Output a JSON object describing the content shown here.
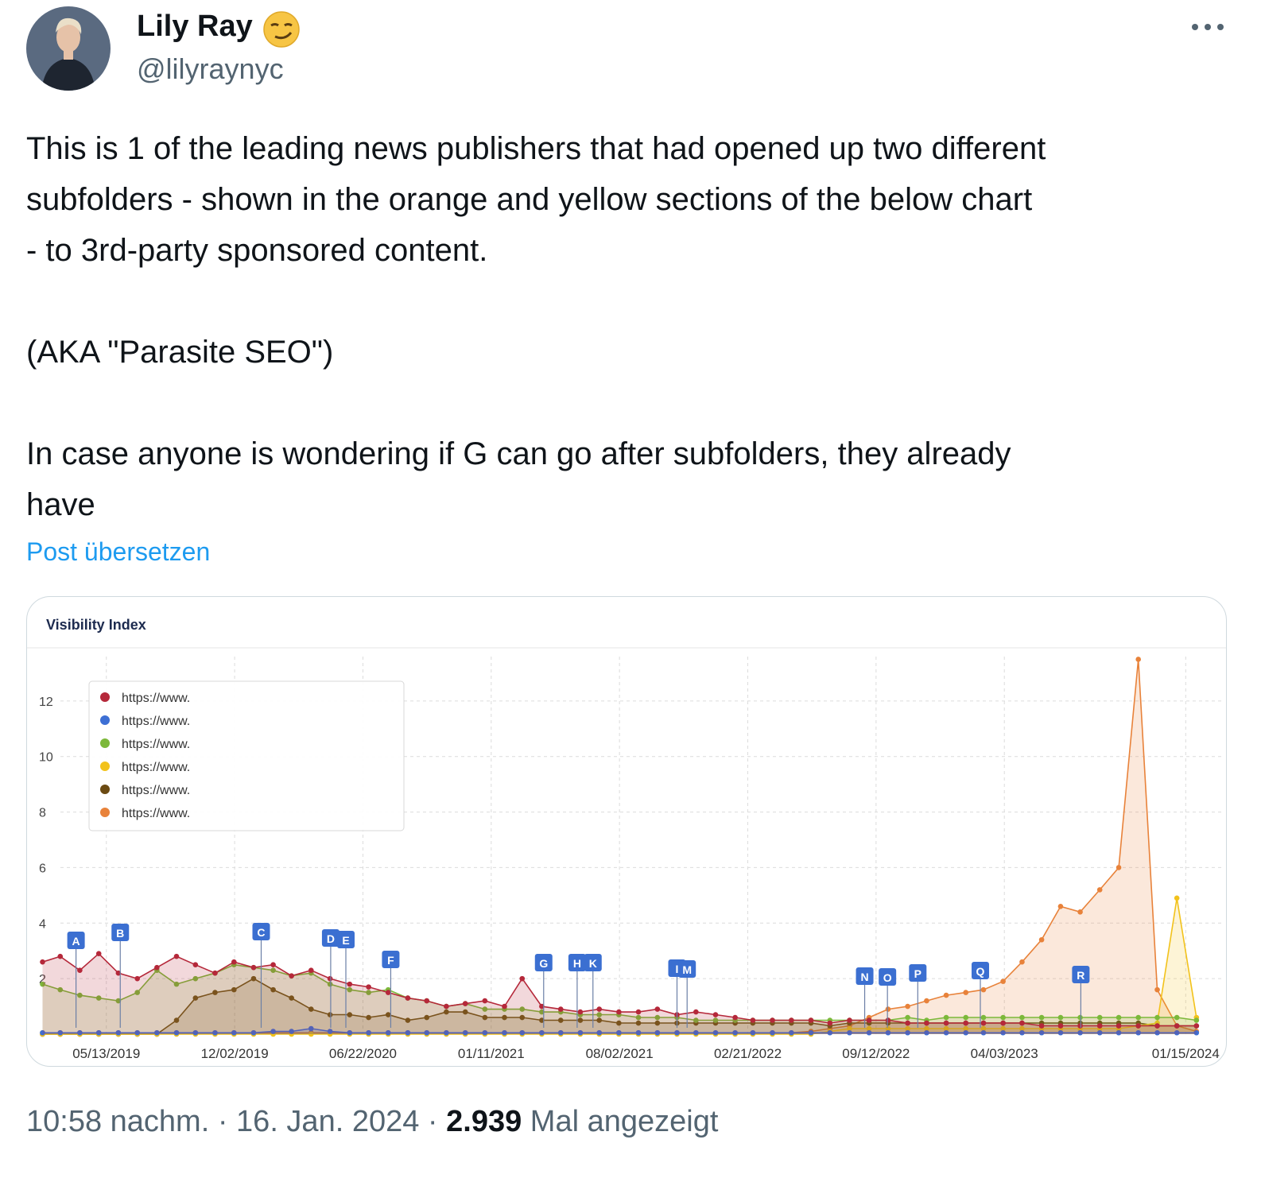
{
  "author": {
    "name": "Lily Ray",
    "handle": "@lilyraynyc"
  },
  "text": [
    [
      "This is 1 of the leading news publishers that had opened up two different",
      "subfolders - shown in the orange and yellow sections of the below chart",
      "- to 3rd-party sponsored content."
    ],
    [
      "(AKA \"Parasite SEO\")"
    ],
    [
      "In case anyone is wondering if G can go after subfolders, they already",
      "have"
    ]
  ],
  "translate": "Post übersetzen",
  "footer": {
    "time": "10:58 nachm.",
    "separator": "·",
    "date": "16. Jan. 2024",
    "views": "2.939",
    "views_label": "Mal angezeigt"
  },
  "chart_data": {
    "type": "line",
    "title": "Visibility Index",
    "fill": true,
    "grid": true,
    "legend": "upper left",
    "xlim": [
      "01/10/2019",
      "03/15/2024"
    ],
    "xticks": [
      "05/13/2019",
      "12/02/2019",
      "06/22/2020",
      "01/11/2021",
      "08/02/2021",
      "02/21/2022",
      "09/12/2022",
      "04/03/2023",
      "01/15/2024"
    ],
    "ylim": [
      0,
      14
    ],
    "yticks": [
      2,
      4,
      6,
      8,
      10,
      12
    ],
    "x": [
      "02/01/2019",
      "03/01/2019",
      "04/01/2019",
      "05/01/2019",
      "06/01/2019",
      "07/01/2019",
      "08/01/2019",
      "09/01/2019",
      "10/01/2019",
      "11/01/2019",
      "12/01/2019",
      "01/01/2020",
      "02/01/2020",
      "03/01/2020",
      "04/01/2020",
      "05/01/2020",
      "06/01/2020",
      "07/01/2020",
      "08/01/2020",
      "09/01/2020",
      "10/01/2020",
      "11/01/2020",
      "12/01/2020",
      "01/01/2021",
      "02/01/2021",
      "03/01/2021",
      "04/01/2021",
      "05/01/2021",
      "06/01/2021",
      "07/01/2021",
      "08/01/2021",
      "09/01/2021",
      "10/01/2021",
      "11/01/2021",
      "12/01/2021",
      "01/01/2022",
      "02/01/2022",
      "03/01/2022",
      "04/01/2022",
      "05/01/2022",
      "06/01/2022",
      "07/01/2022",
      "08/01/2022",
      "09/01/2022",
      "10/01/2022",
      "11/01/2022",
      "12/01/2022",
      "01/01/2023",
      "02/01/2023",
      "03/01/2023",
      "04/01/2023",
      "05/01/2023",
      "06/01/2023",
      "07/01/2023",
      "08/01/2023",
      "09/01/2023",
      "10/01/2023",
      "11/01/2023",
      "12/01/2023",
      "01/01/2024",
      "02/01/2024"
    ],
    "series": [
      {
        "name": "https://www.",
        "color": "#b5283a",
        "values": [
          2.6,
          2.8,
          2.3,
          2.9,
          2.2,
          2.0,
          2.4,
          2.8,
          2.5,
          2.2,
          2.6,
          2.4,
          2.5,
          2.1,
          2.3,
          2.0,
          1.8,
          1.7,
          1.5,
          1.3,
          1.2,
          1.0,
          1.1,
          1.2,
          1.0,
          2.0,
          1.0,
          0.9,
          0.8,
          0.9,
          0.8,
          0.8,
          0.9,
          0.7,
          0.8,
          0.7,
          0.6,
          0.5,
          0.5,
          0.5,
          0.5,
          0.4,
          0.5,
          0.5,
          0.5,
          0.4,
          0.4,
          0.4,
          0.4,
          0.4,
          0.4,
          0.4,
          0.3,
          0.3,
          0.3,
          0.3,
          0.3,
          0.3,
          0.3,
          0.3,
          0.3
        ]
      },
      {
        "name": "https://www.",
        "color": "#3d6fd4",
        "values": [
          0.05,
          0.05,
          0.05,
          0.05,
          0.05,
          0.05,
          0.05,
          0.05,
          0.05,
          0.05,
          0.05,
          0.05,
          0.1,
          0.1,
          0.2,
          0.1,
          0.05,
          0.05,
          0.05,
          0.05,
          0.05,
          0.05,
          0.05,
          0.05,
          0.05,
          0.05,
          0.05,
          0.05,
          0.05,
          0.05,
          0.05,
          0.05,
          0.05,
          0.05,
          0.05,
          0.05,
          0.05,
          0.05,
          0.05,
          0.05,
          0.05,
          0.05,
          0.05,
          0.05,
          0.05,
          0.05,
          0.05,
          0.05,
          0.05,
          0.05,
          0.05,
          0.05,
          0.05,
          0.05,
          0.05,
          0.05,
          0.05,
          0.05,
          0.05,
          0.05,
          0.05
        ]
      },
      {
        "name": "https://www.",
        "color": "#7cb83a",
        "values": [
          1.8,
          1.6,
          1.4,
          1.3,
          1.2,
          1.5,
          2.3,
          1.8,
          2.0,
          2.2,
          2.5,
          2.4,
          2.3,
          2.1,
          2.2,
          1.8,
          1.6,
          1.5,
          1.6,
          1.3,
          1.2,
          1.0,
          1.1,
          0.9,
          0.9,
          0.9,
          0.8,
          0.8,
          0.7,
          0.7,
          0.7,
          0.6,
          0.6,
          0.6,
          0.5,
          0.5,
          0.5,
          0.5,
          0.5,
          0.5,
          0.5,
          0.5,
          0.5,
          0.5,
          0.5,
          0.6,
          0.5,
          0.6,
          0.6,
          0.6,
          0.6,
          0.6,
          0.6,
          0.6,
          0.6,
          0.6,
          0.6,
          0.6,
          0.6,
          0.6,
          0.5
        ]
      },
      {
        "name": "https://www.",
        "color": "#f2c21b",
        "values": [
          0,
          0,
          0,
          0,
          0,
          0,
          0,
          0,
          0,
          0,
          0,
          0,
          0,
          0,
          0,
          0,
          0,
          0,
          0,
          0,
          0,
          0,
          0,
          0,
          0,
          0,
          0,
          0,
          0,
          0,
          0,
          0,
          0,
          0,
          0,
          0,
          0,
          0,
          0,
          0,
          0,
          0.1,
          0.2,
          0.2,
          0.2,
          0.2,
          0.2,
          0.2,
          0.2,
          0.2,
          0.2,
          0.2,
          0.2,
          0.2,
          0.2,
          0.2,
          0.2,
          0.3,
          0.4,
          4.9,
          0.6
        ]
      },
      {
        "name": "https://www.",
        "color": "#6b4a12",
        "values": [
          0,
          0,
          0,
          0,
          0,
          0,
          0,
          0.5,
          1.3,
          1.5,
          1.6,
          2.0,
          1.6,
          1.3,
          0.9,
          0.7,
          0.7,
          0.6,
          0.7,
          0.5,
          0.6,
          0.8,
          0.8,
          0.6,
          0.6,
          0.6,
          0.5,
          0.5,
          0.5,
          0.5,
          0.4,
          0.4,
          0.4,
          0.4,
          0.4,
          0.4,
          0.4,
          0.4,
          0.4,
          0.4,
          0.4,
          0.3,
          0.4,
          0.4,
          0.4,
          0.4,
          0.4,
          0.4,
          0.4,
          0.4,
          0.4,
          0.4,
          0.4,
          0.4,
          0.4,
          0.4,
          0.4,
          0.4,
          0.3,
          0.3,
          0.3
        ]
      },
      {
        "name": "https://www.",
        "color": "#e8823a",
        "values": [
          0.05,
          0.05,
          0.05,
          0.05,
          0.05,
          0.05,
          0.05,
          0.05,
          0.05,
          0.05,
          0.05,
          0.05,
          0.05,
          0.05,
          0.05,
          0.05,
          0.05,
          0.05,
          0.05,
          0.05,
          0.05,
          0.05,
          0.05,
          0.05,
          0.05,
          0.05,
          0.05,
          0.05,
          0.05,
          0.05,
          0.05,
          0.05,
          0.05,
          0.05,
          0.05,
          0.05,
          0.05,
          0.05,
          0.05,
          0.05,
          0.1,
          0.2,
          0.3,
          0.6,
          0.9,
          1.0,
          1.2,
          1.4,
          1.5,
          1.6,
          1.9,
          2.6,
          3.4,
          4.6,
          4.4,
          5.2,
          6.0,
          13.5,
          1.6,
          0.3,
          0.1
        ]
      }
    ],
    "events": [
      {
        "label": "A",
        "x": "03/26/2019"
      },
      {
        "label": "B",
        "x": "06/04/2019"
      },
      {
        "label": "C",
        "x": "01/13/2020"
      },
      {
        "label": "D",
        "x": "05/02/2020"
      },
      {
        "label": "E",
        "x": "05/26/2020"
      },
      {
        "label": "F",
        "x": "08/05/2020"
      },
      {
        "label": "G",
        "x": "04/04/2021"
      },
      {
        "label": "H",
        "x": "05/27/2021"
      },
      {
        "label": "K",
        "x": "06/21/2021"
      },
      {
        "label": "I",
        "x": "11/01/2021"
      },
      {
        "label": "M",
        "x": "11/17/2021"
      },
      {
        "label": "N",
        "x": "08/25/2022"
      },
      {
        "label": "O",
        "x": "09/30/2022"
      },
      {
        "label": "P",
        "x": "11/17/2022"
      },
      {
        "label": "Q",
        "x": "02/24/2023"
      },
      {
        "label": "R",
        "x": "08/02/2023"
      }
    ]
  }
}
